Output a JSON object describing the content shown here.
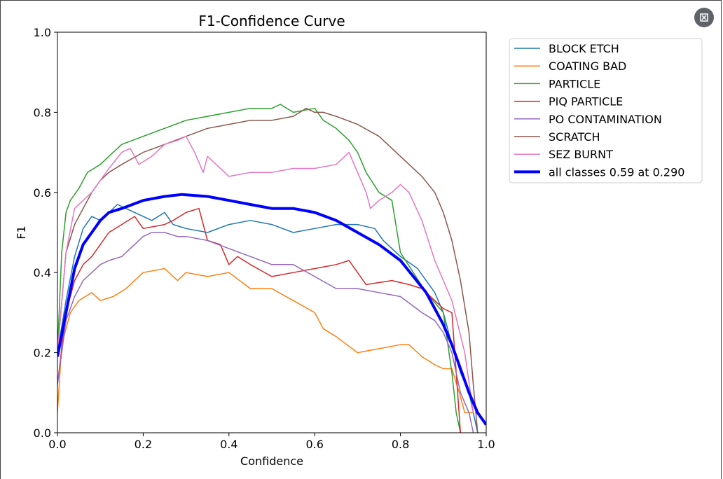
{
  "chart_data": {
    "type": "line",
    "title": "F1-Confidence Curve",
    "xlabel": "Confidence",
    "ylabel": "F1",
    "xlim": [
      0,
      1
    ],
    "ylim": [
      0,
      1
    ],
    "xticks": [
      "0.0",
      "0.2",
      "0.4",
      "0.6",
      "0.8",
      "1.0"
    ],
    "yticks": [
      "0.0",
      "0.2",
      "0.4",
      "0.6",
      "0.8",
      "1.0"
    ],
    "legend_position": "outside-top-right",
    "series": [
      {
        "name": "BLOCK ETCH",
        "color": "#1f77b4",
        "width": 1.5,
        "x": [
          0,
          0.02,
          0.04,
          0.06,
          0.08,
          0.1,
          0.12,
          0.14,
          0.16,
          0.18,
          0.2,
          0.22,
          0.25,
          0.27,
          0.3,
          0.35,
          0.4,
          0.45,
          0.5,
          0.55,
          0.6,
          0.65,
          0.7,
          0.74,
          0.76,
          0.8,
          0.84,
          0.88,
          0.9,
          0.92,
          0.94,
          0.96,
          0.97,
          0.98
        ],
        "y": [
          0.2,
          0.33,
          0.44,
          0.51,
          0.54,
          0.53,
          0.55,
          0.57,
          0.56,
          0.55,
          0.54,
          0.53,
          0.55,
          0.52,
          0.51,
          0.5,
          0.52,
          0.53,
          0.52,
          0.5,
          0.51,
          0.52,
          0.52,
          0.51,
          0.48,
          0.44,
          0.41,
          0.35,
          0.3,
          0.22,
          0.15,
          0.1,
          0.05,
          0
        ]
      },
      {
        "name": "COATING BAD",
        "color": "#ff7f0e",
        "width": 1.5,
        "x": [
          0,
          0.01,
          0.03,
          0.05,
          0.08,
          0.1,
          0.13,
          0.16,
          0.18,
          0.2,
          0.25,
          0.28,
          0.3,
          0.35,
          0.4,
          0.45,
          0.5,
          0.55,
          0.6,
          0.62,
          0.65,
          0.7,
          0.75,
          0.8,
          0.82,
          0.85,
          0.88,
          0.9,
          0.92,
          0.94,
          0.95,
          0.97
        ],
        "y": [
          0.05,
          0.22,
          0.3,
          0.33,
          0.35,
          0.33,
          0.34,
          0.36,
          0.38,
          0.4,
          0.41,
          0.38,
          0.4,
          0.39,
          0.4,
          0.36,
          0.36,
          0.33,
          0.3,
          0.26,
          0.24,
          0.2,
          0.21,
          0.22,
          0.22,
          0.19,
          0.17,
          0.16,
          0.16,
          0.09,
          0.05,
          0.05
        ]
      },
      {
        "name": "PARTICLE",
        "color": "#2ca02c",
        "width": 1.5,
        "x": [
          0,
          0.01,
          0.02,
          0.03,
          0.05,
          0.07,
          0.1,
          0.12,
          0.15,
          0.2,
          0.25,
          0.3,
          0.35,
          0.4,
          0.45,
          0.5,
          0.52,
          0.55,
          0.6,
          0.62,
          0.65,
          0.68,
          0.7,
          0.72,
          0.75,
          0.78,
          0.8,
          0.83,
          0.86,
          0.9,
          0.92,
          0.93,
          0.94
        ],
        "y": [
          0.2,
          0.45,
          0.55,
          0.58,
          0.61,
          0.65,
          0.67,
          0.69,
          0.72,
          0.74,
          0.76,
          0.78,
          0.79,
          0.8,
          0.81,
          0.81,
          0.82,
          0.8,
          0.81,
          0.78,
          0.76,
          0.73,
          0.7,
          0.65,
          0.6,
          0.58,
          0.45,
          0.4,
          0.35,
          0.3,
          0.15,
          0.05,
          0
        ]
      },
      {
        "name": "PIQ PARTICLE",
        "color": "#d62728",
        "width": 1.5,
        "x": [
          0,
          0.02,
          0.04,
          0.06,
          0.08,
          0.1,
          0.12,
          0.15,
          0.18,
          0.2,
          0.25,
          0.27,
          0.3,
          0.33,
          0.35,
          0.38,
          0.4,
          0.42,
          0.45,
          0.5,
          0.55,
          0.6,
          0.65,
          0.68,
          0.72,
          0.78,
          0.82,
          0.85,
          0.88,
          0.9,
          0.92,
          0.93,
          0.94
        ],
        "y": [
          0.12,
          0.3,
          0.38,
          0.42,
          0.44,
          0.47,
          0.5,
          0.52,
          0.54,
          0.51,
          0.52,
          0.53,
          0.55,
          0.56,
          0.48,
          0.47,
          0.42,
          0.44,
          0.42,
          0.39,
          0.4,
          0.41,
          0.42,
          0.43,
          0.37,
          0.38,
          0.37,
          0.36,
          0.33,
          0.31,
          0.3,
          0.15,
          0
        ]
      },
      {
        "name": "PO CONTAMINATION",
        "color": "#9467bd",
        "width": 1.5,
        "x": [
          0,
          0.02,
          0.04,
          0.06,
          0.08,
          0.1,
          0.12,
          0.15,
          0.18,
          0.2,
          0.22,
          0.25,
          0.28,
          0.3,
          0.35,
          0.4,
          0.45,
          0.5,
          0.55,
          0.6,
          0.65,
          0.7,
          0.75,
          0.8,
          0.85,
          0.88,
          0.9,
          0.92,
          0.94,
          0.96,
          0.97
        ],
        "y": [
          0.12,
          0.28,
          0.34,
          0.38,
          0.4,
          0.42,
          0.43,
          0.44,
          0.47,
          0.49,
          0.5,
          0.5,
          0.49,
          0.49,
          0.48,
          0.46,
          0.44,
          0.42,
          0.42,
          0.39,
          0.36,
          0.36,
          0.35,
          0.34,
          0.3,
          0.28,
          0.25,
          0.2,
          0.1,
          0.05,
          0
        ]
      },
      {
        "name": "SCRATCH",
        "color": "#8c564b",
        "width": 1.5,
        "x": [
          0,
          0.02,
          0.04,
          0.06,
          0.08,
          0.1,
          0.12,
          0.15,
          0.2,
          0.25,
          0.3,
          0.35,
          0.4,
          0.45,
          0.5,
          0.55,
          0.58,
          0.6,
          0.62,
          0.65,
          0.7,
          0.75,
          0.8,
          0.85,
          0.88,
          0.9,
          0.92,
          0.94,
          0.96,
          0.97,
          0.98
        ],
        "y": [
          0.2,
          0.45,
          0.52,
          0.56,
          0.6,
          0.63,
          0.65,
          0.67,
          0.7,
          0.72,
          0.74,
          0.76,
          0.77,
          0.78,
          0.78,
          0.79,
          0.81,
          0.8,
          0.8,
          0.79,
          0.77,
          0.74,
          0.69,
          0.64,
          0.6,
          0.55,
          0.48,
          0.38,
          0.25,
          0.12,
          0
        ]
      },
      {
        "name": "SEZ BURNT",
        "color": "#e377c2",
        "width": 1.5,
        "x": [
          0,
          0.02,
          0.04,
          0.06,
          0.08,
          0.1,
          0.12,
          0.15,
          0.17,
          0.19,
          0.22,
          0.25,
          0.28,
          0.3,
          0.32,
          0.34,
          0.35,
          0.4,
          0.45,
          0.5,
          0.55,
          0.6,
          0.65,
          0.68,
          0.7,
          0.72,
          0.73,
          0.75,
          0.78,
          0.8,
          0.82,
          0.85,
          0.88,
          0.9,
          0.92,
          0.95,
          0.97
        ],
        "y": [
          0.2,
          0.45,
          0.56,
          0.58,
          0.6,
          0.63,
          0.66,
          0.7,
          0.71,
          0.67,
          0.69,
          0.72,
          0.73,
          0.74,
          0.7,
          0.65,
          0.69,
          0.64,
          0.65,
          0.65,
          0.66,
          0.66,
          0.67,
          0.7,
          0.65,
          0.6,
          0.56,
          0.58,
          0.6,
          0.62,
          0.6,
          0.53,
          0.43,
          0.38,
          0.33,
          0.2,
          0.05
        ]
      },
      {
        "name": "all classes 0.59 at 0.290",
        "color": "#0000ff",
        "width": 4,
        "x": [
          0,
          0.02,
          0.04,
          0.06,
          0.08,
          0.1,
          0.12,
          0.15,
          0.2,
          0.25,
          0.29,
          0.35,
          0.4,
          0.45,
          0.5,
          0.55,
          0.6,
          0.65,
          0.7,
          0.75,
          0.8,
          0.83,
          0.86,
          0.88,
          0.9,
          0.92,
          0.94,
          0.96,
          0.98,
          1.0
        ],
        "y": [
          0.19,
          0.3,
          0.41,
          0.47,
          0.5,
          0.53,
          0.55,
          0.56,
          0.58,
          0.59,
          0.595,
          0.59,
          0.58,
          0.57,
          0.56,
          0.56,
          0.55,
          0.53,
          0.5,
          0.47,
          0.43,
          0.39,
          0.35,
          0.31,
          0.27,
          0.22,
          0.16,
          0.1,
          0.05,
          0.02
        ]
      }
    ]
  },
  "ui": {
    "expand_icon": "expand-icon"
  }
}
